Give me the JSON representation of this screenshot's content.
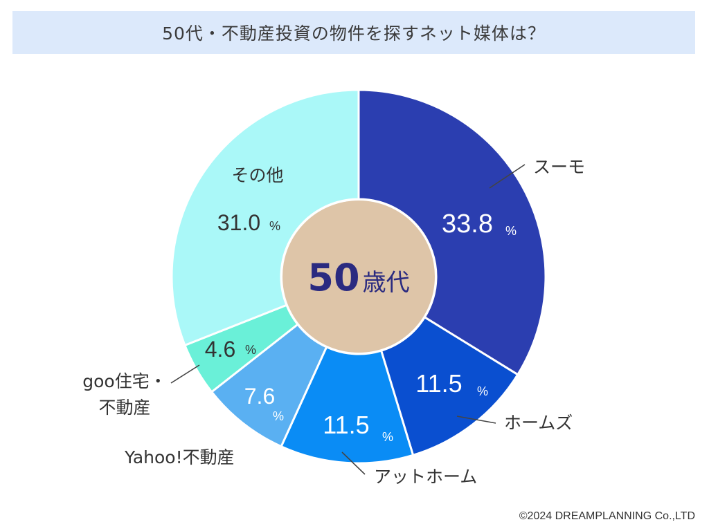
{
  "title": "50代・不動産投資の物件を探すネット媒体は？",
  "copyright": "©2024 DREAMPLANNING Co.,LTD",
  "center_label": {
    "number": "50",
    "suffix": "歳代"
  },
  "chart_data": {
    "type": "pie",
    "title": "50代・不動産投資の物件を探すネット媒体は？",
    "donut_center_text": "50歳代",
    "unit": "%",
    "slices": [
      {
        "name": "スーモ",
        "label_lines": [
          "スーモ"
        ],
        "value": 33.8,
        "value_text": "33.8",
        "color": "#2b3eb0",
        "value_color": "#ffffff"
      },
      {
        "name": "ホームズ",
        "label_lines": [
          "ホームズ"
        ],
        "value": 11.5,
        "value_text": "11.5",
        "color": "#0a4fd0",
        "value_color": "#ffffff"
      },
      {
        "name": "アットホーム",
        "label_lines": [
          "アットホーム"
        ],
        "value": 11.5,
        "value_text": "11.5",
        "color": "#0a8cf5",
        "value_color": "#ffffff"
      },
      {
        "name": "Yahoo!不動産",
        "label_lines": [
          "Yahoo!不動産"
        ],
        "value": 7.6,
        "value_text": "7.6",
        "color": "#5ab0f2",
        "value_color": "#ffffff"
      },
      {
        "name": "goo住宅・不動産",
        "label_lines": [
          "goo住宅・",
          "不動産"
        ],
        "value": 4.6,
        "value_text": "4.6",
        "color": "#6af0d8",
        "value_color": "#333333"
      },
      {
        "name": "その他",
        "label_lines": [
          "その他"
        ],
        "value": 31.0,
        "value_text": "31.0",
        "color": "#aaf8f8",
        "value_color": "#333333"
      }
    ]
  },
  "colors": {
    "title_bg": "#dce9fb",
    "center_fill": "#dec5a8",
    "center_text": "#2a2a80",
    "leader_line": "#444444"
  }
}
